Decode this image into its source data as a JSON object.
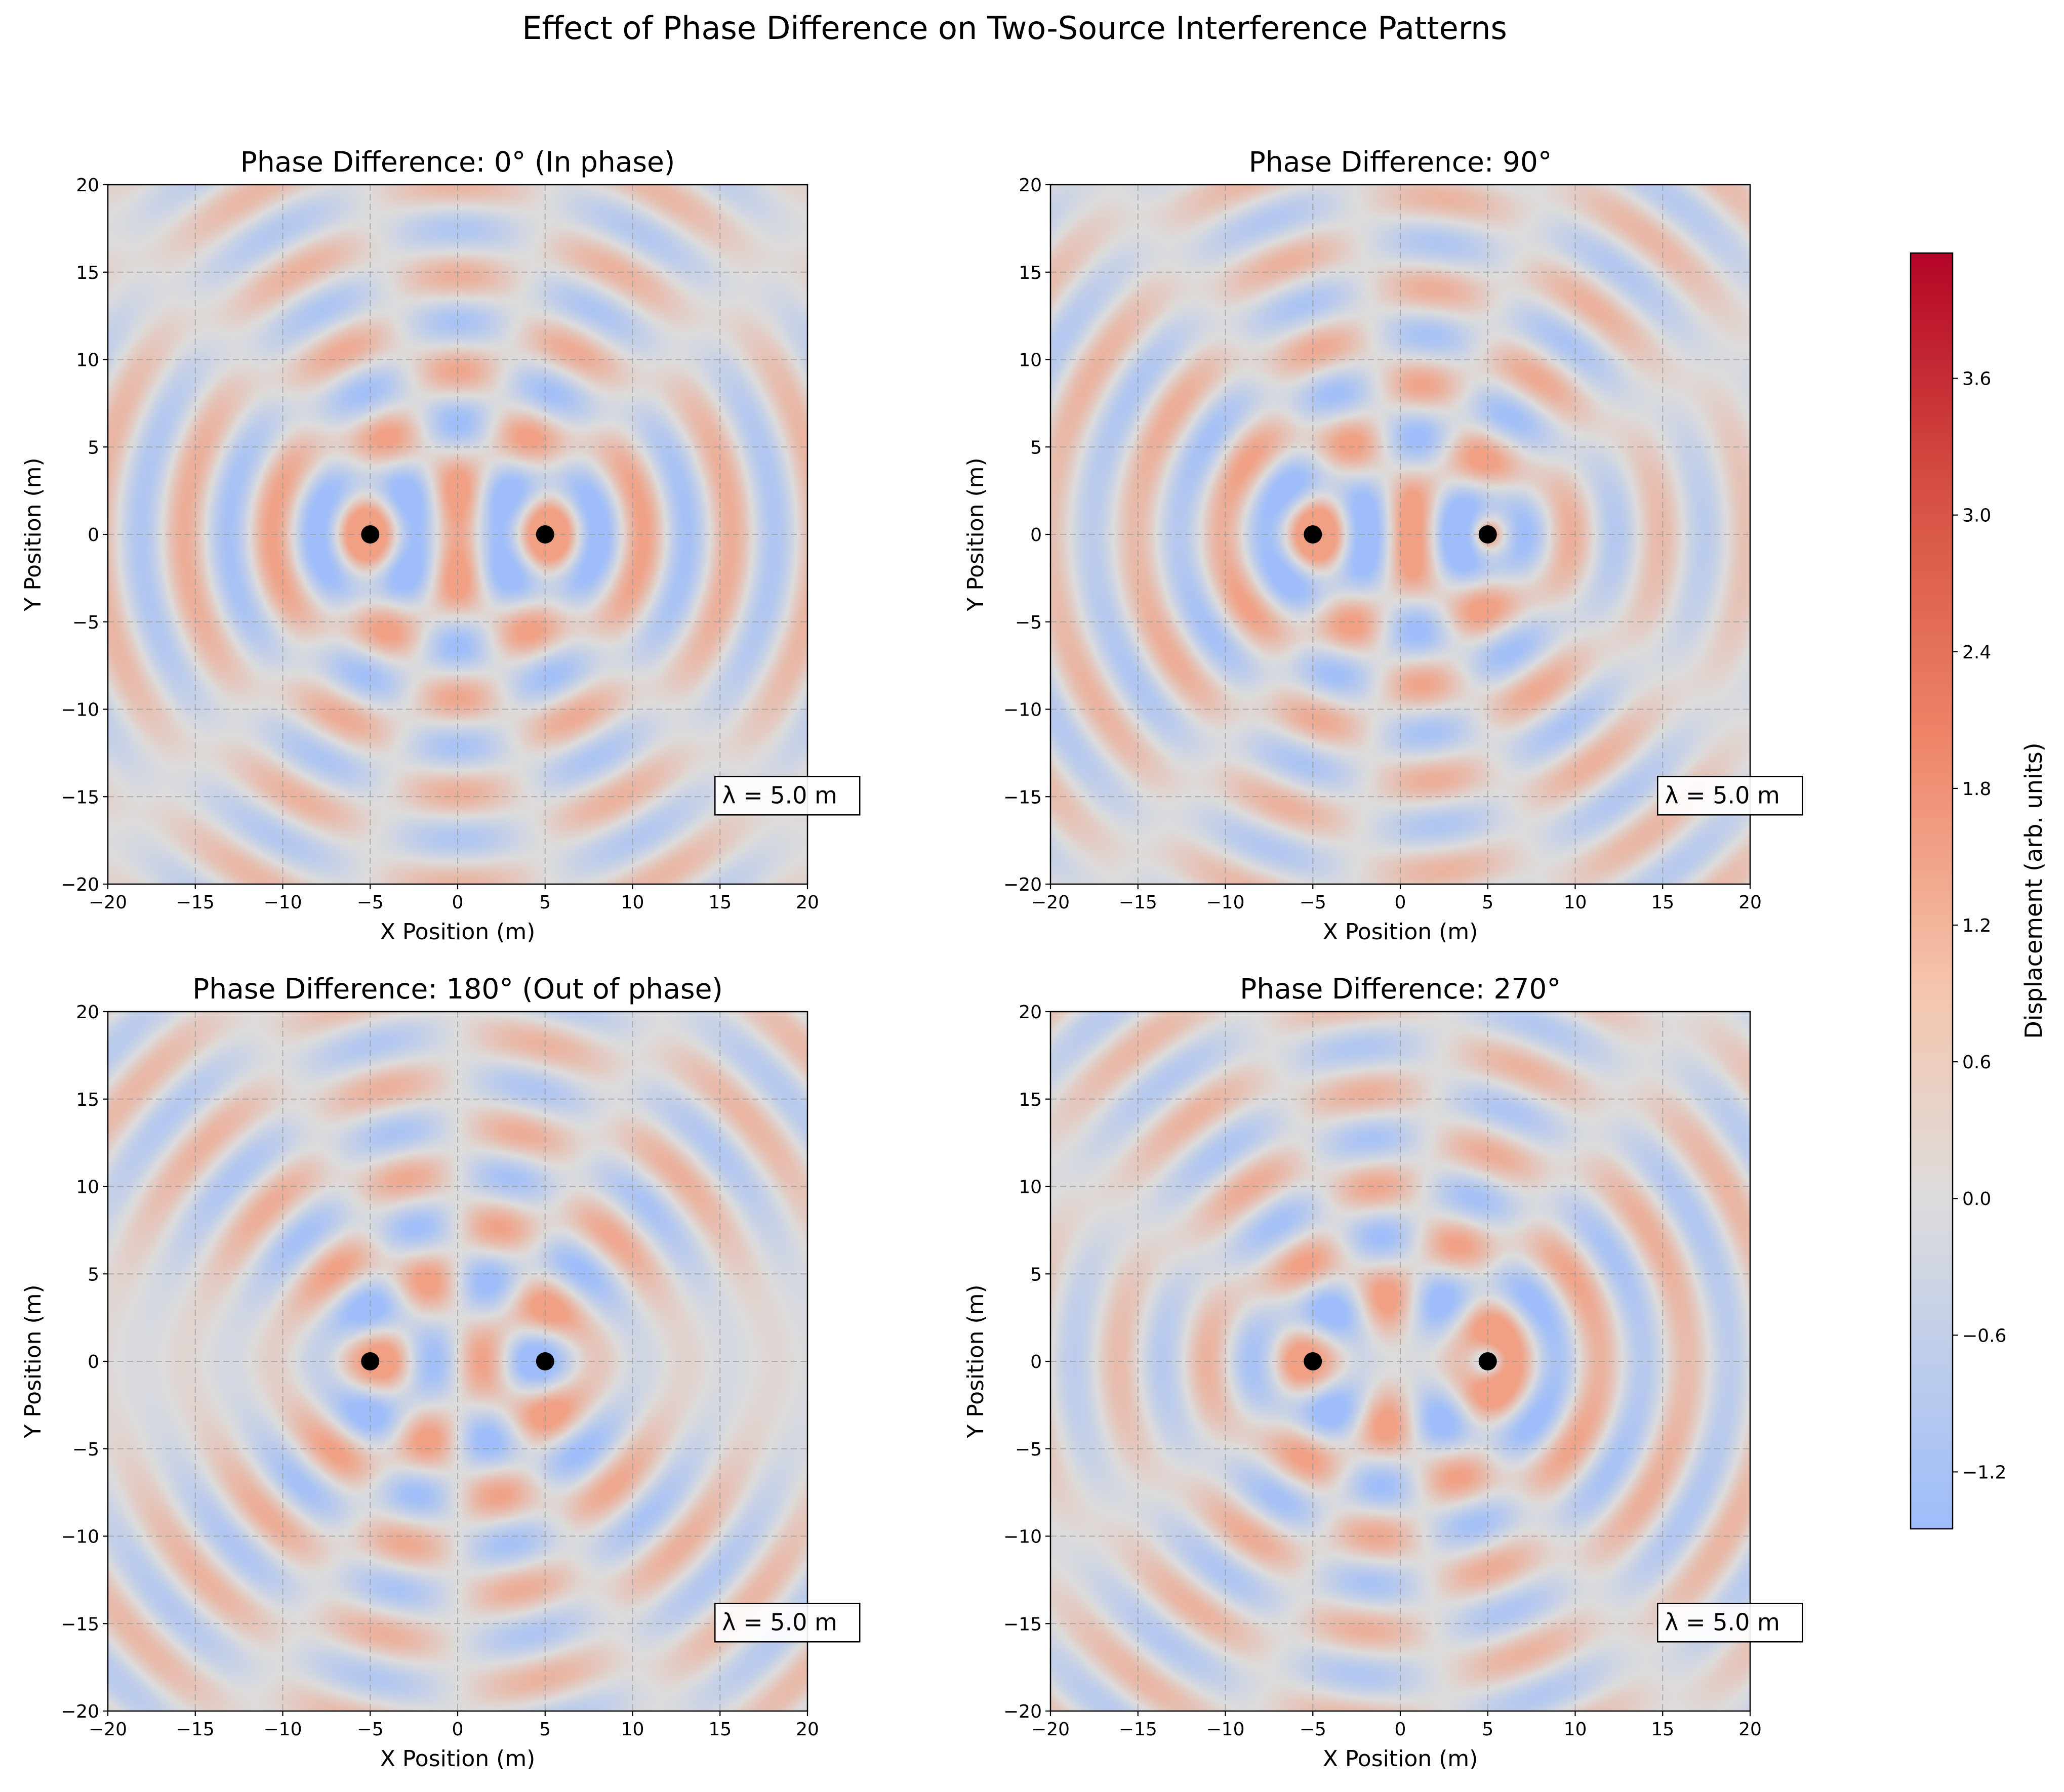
{
  "figure": {
    "suptitle": "Effect of Phase Difference on Two-Source Interference Patterns"
  },
  "colorbar": {
    "label": "Displacement (arb. units)",
    "ticks": [
      -1.2,
      -0.6,
      0.0,
      0.6,
      1.2,
      1.8,
      2.4,
      3.0,
      3.6
    ],
    "tick_labels": [
      "−1.2",
      "−0.6",
      "0.0",
      "0.6",
      "1.2",
      "1.8",
      "2.4",
      "3.0",
      "3.6"
    ],
    "range": [
      -1.45,
      4.15
    ],
    "colormap": "coolwarm",
    "colors": {
      "low": "#9ebdfa",
      "mid": "#dddcdc",
      "high": "#b40426"
    }
  },
  "chart_data": [
    {
      "type": "heatmap",
      "title": "Phase Difference: 0° (In phase)",
      "phase_deg": 0,
      "xlabel": "X Position (m)",
      "ylabel": "Y Position (m)",
      "xlim": [
        -20,
        20
      ],
      "ylim": [
        -20,
        20
      ],
      "xticks": [
        -20,
        -15,
        -10,
        -5,
        0,
        5,
        10,
        15,
        20
      ],
      "yticks": [
        -20,
        -15,
        -10,
        -5,
        0,
        5,
        10,
        15,
        20
      ],
      "xtick_labels": [
        "−20",
        "−15",
        "−10",
        "−5",
        "0",
        "5",
        "10",
        "15",
        "20"
      ],
      "ytick_labels": [
        "−20",
        "−15",
        "−10",
        "−5",
        "0",
        "5",
        "10",
        "15",
        "20"
      ],
      "grid": true,
      "sources": [
        {
          "x": -5,
          "y": 0
        },
        {
          "x": 5,
          "y": 0
        }
      ],
      "annotation": "λ = 5.0 m"
    },
    {
      "type": "heatmap",
      "title": "Phase Difference: 90°",
      "phase_deg": 90,
      "xlabel": "X Position (m)",
      "ylabel": "Y Position (m)",
      "xlim": [
        -20,
        20
      ],
      "ylim": [
        -20,
        20
      ],
      "xticks": [
        -20,
        -15,
        -10,
        -5,
        0,
        5,
        10,
        15,
        20
      ],
      "yticks": [
        -20,
        -15,
        -10,
        -5,
        0,
        5,
        10,
        15,
        20
      ],
      "xtick_labels": [
        "−20",
        "−15",
        "−10",
        "−5",
        "0",
        "5",
        "10",
        "15",
        "20"
      ],
      "ytick_labels": [
        "−20",
        "−15",
        "−10",
        "−5",
        "0",
        "5",
        "10",
        "15",
        "20"
      ],
      "grid": true,
      "sources": [
        {
          "x": -5,
          "y": 0
        },
        {
          "x": 5,
          "y": 0
        }
      ],
      "annotation": "λ = 5.0 m"
    },
    {
      "type": "heatmap",
      "title": "Phase Difference: 180° (Out of phase)",
      "phase_deg": 180,
      "xlabel": "X Position (m)",
      "ylabel": "Y Position (m)",
      "xlim": [
        -20,
        20
      ],
      "ylim": [
        -20,
        20
      ],
      "xticks": [
        -20,
        -15,
        -10,
        -5,
        0,
        5,
        10,
        15,
        20
      ],
      "yticks": [
        -20,
        -15,
        -10,
        -5,
        0,
        5,
        10,
        15,
        20
      ],
      "xtick_labels": [
        "−20",
        "−15",
        "−10",
        "−5",
        "0",
        "5",
        "10",
        "15",
        "20"
      ],
      "ytick_labels": [
        "−20",
        "−15",
        "−10",
        "−5",
        "0",
        "5",
        "10",
        "15",
        "20"
      ],
      "grid": true,
      "sources": [
        {
          "x": -5,
          "y": 0
        },
        {
          "x": 5,
          "y": 0
        }
      ],
      "annotation": "λ = 5.0 m"
    },
    {
      "type": "heatmap",
      "title": "Phase Difference: 270°",
      "phase_deg": 270,
      "xlabel": "X Position (m)",
      "ylabel": "Y Position (m)",
      "xlim": [
        -20,
        20
      ],
      "ylim": [
        -20,
        20
      ],
      "xticks": [
        -20,
        -15,
        -10,
        -5,
        0,
        5,
        10,
        15,
        20
      ],
      "yticks": [
        -20,
        -15,
        -10,
        -5,
        0,
        5,
        10,
        15,
        20
      ],
      "xtick_labels": [
        "−20",
        "−15",
        "−10",
        "−5",
        "0",
        "5",
        "10",
        "15",
        "20"
      ],
      "ytick_labels": [
        "−20",
        "−15",
        "−10",
        "−5",
        "0",
        "5",
        "10",
        "15",
        "20"
      ],
      "grid": true,
      "sources": [
        {
          "x": -5,
          "y": 0
        },
        {
          "x": 5,
          "y": 0
        }
      ],
      "annotation": "λ = 5.0 m"
    }
  ]
}
